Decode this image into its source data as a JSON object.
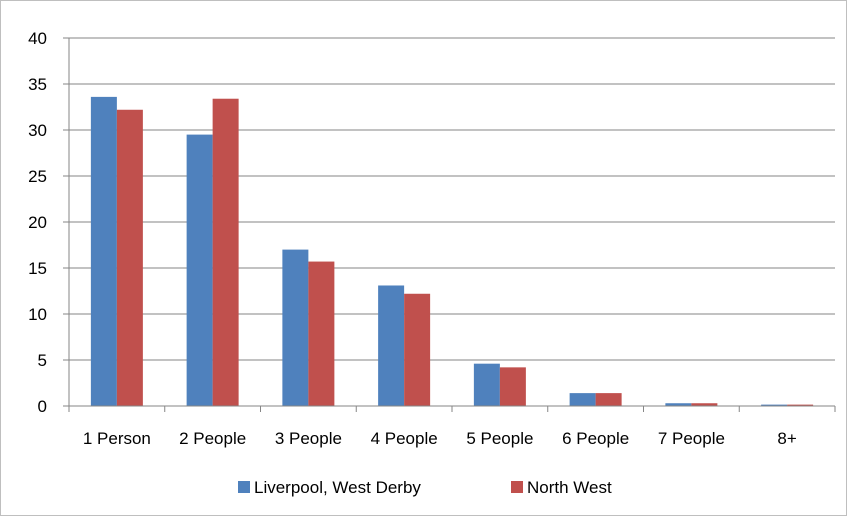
{
  "chart_data": {
    "type": "bar",
    "categories": [
      "1 Person",
      "2 People",
      "3 People",
      "4 People",
      "5 People",
      "6 People",
      "7 People",
      "8+"
    ],
    "series": [
      {
        "name": "Liverpool, West Derby",
        "color": "#4f81bd",
        "values": [
          33.6,
          29.5,
          17.0,
          13.1,
          4.6,
          1.4,
          0.3,
          0.15
        ]
      },
      {
        "name": "North West",
        "color": "#c0504d",
        "values": [
          32.2,
          33.4,
          15.7,
          12.2,
          4.2,
          1.4,
          0.3,
          0.15
        ]
      }
    ],
    "ylim": [
      0,
      40
    ],
    "yticks": [
      0,
      5,
      10,
      15,
      20,
      25,
      30,
      35,
      40
    ],
    "grid": true,
    "legend": "bottom"
  }
}
